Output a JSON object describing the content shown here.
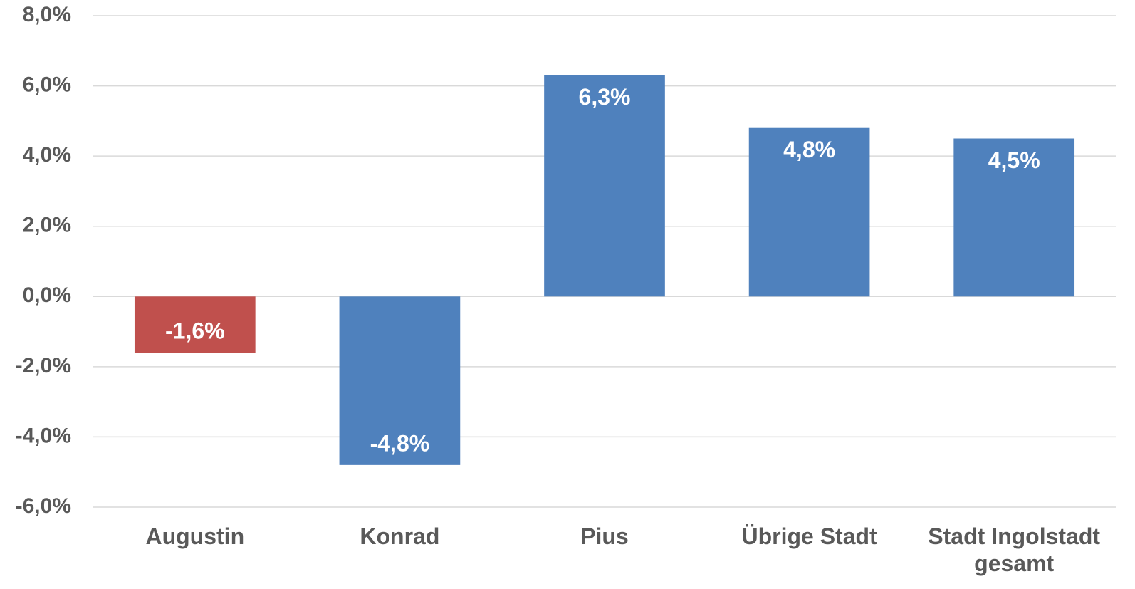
{
  "chart_data": {
    "type": "bar",
    "categories": [
      "Augustin",
      "Konrad",
      "Pius",
      "Übrige Stadt",
      "Stadt Ingolstadt gesamt"
    ],
    "values": [
      -1.6,
      -4.8,
      6.3,
      4.8,
      4.5
    ],
    "value_labels": [
      "-1,6%",
      "-4,8%",
      "6,3%",
      "4,8%",
      "4,5%"
    ],
    "colors": [
      "#c0504d",
      "#4f81bd",
      "#4f81bd",
      "#4f81bd",
      "#4f81bd"
    ],
    "ylim": [
      -6,
      8
    ],
    "yticks": [
      {
        "value": -6,
        "label": "-6,0%"
      },
      {
        "value": -4,
        "label": "-4,0%"
      },
      {
        "value": -2,
        "label": "-2,0%"
      },
      {
        "value": 0,
        "label": "0,0%"
      },
      {
        "value": 2,
        "label": "2,0%"
      },
      {
        "value": 4,
        "label": "4,0%"
      },
      {
        "value": 6,
        "label": "6,0%"
      },
      {
        "value": 8,
        "label": "8,0%"
      }
    ],
    "grid": true
  }
}
